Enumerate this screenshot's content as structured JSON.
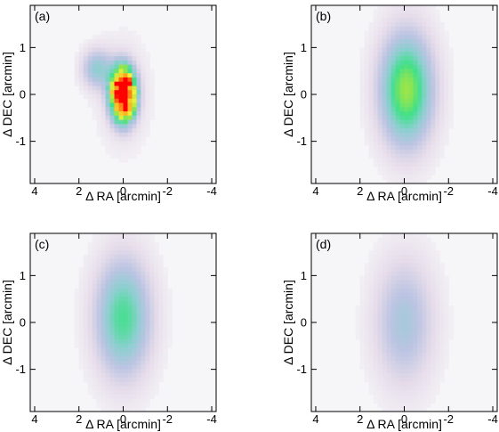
{
  "chart_data": [
    {
      "type": "heatmap",
      "panel_label": "(a)",
      "xlabel": "Δ RA [arcmin]",
      "ylabel": "Δ DEC [arcmin]",
      "xlim": [
        4.2,
        -4.2
      ],
      "ylim": [
        -1.9,
        1.9
      ],
      "x_ticks": [
        "4",
        "2",
        "0",
        "-2",
        "-4"
      ],
      "y_ticks": [
        "1",
        "0",
        "-1"
      ],
      "peak_center": [
        0.0,
        0.0
      ],
      "peak_intensity": 1.0,
      "structure": "clumpy"
    },
    {
      "type": "heatmap",
      "panel_label": "(b)",
      "xlabel": "Δ RA [arcmin]",
      "ylabel": "Δ DEC [arcmin]",
      "xlim": [
        4.2,
        -4.2
      ],
      "ylim": [
        -1.9,
        1.9
      ],
      "x_ticks": [
        "4",
        "2",
        "0",
        "-2",
        "-4"
      ],
      "y_ticks": [
        "1",
        "0",
        "-1"
      ],
      "peak_center": [
        -0.1,
        0.1
      ],
      "peak_intensity": 0.55,
      "structure": "smooth"
    },
    {
      "type": "heatmap",
      "panel_label": "(c)",
      "xlabel": "Δ RA [arcmin]",
      "ylabel": "Δ DEC [arcmin]",
      "xlim": [
        4.2,
        -4.2
      ],
      "ylim": [
        -1.9,
        1.9
      ],
      "x_ticks": [
        "4",
        "2",
        "0",
        "-2",
        "-4"
      ],
      "y_ticks": [
        "1",
        "0",
        "-1"
      ],
      "peak_center": [
        0.0,
        0.1
      ],
      "peak_intensity": 0.42,
      "structure": "smooth"
    },
    {
      "type": "heatmap",
      "panel_label": "(d)",
      "xlabel": "Δ RA [arcmin]",
      "ylabel": "Δ DEC [arcmin]",
      "xlim": [
        4.2,
        -4.2
      ],
      "ylim": [
        -1.9,
        1.9
      ],
      "x_ticks": [
        "4",
        "2",
        "0",
        "-2",
        "-4"
      ],
      "y_ticks": [
        "1",
        "0",
        "-1"
      ],
      "peak_center": [
        0.0,
        0.0
      ],
      "peak_intensity": 0.24,
      "structure": "smooth"
    }
  ],
  "colormap": [
    "#f6f5f8",
    "#e6dcea",
    "#bcc4e2",
    "#8ccfd0",
    "#40e08a",
    "#a8e640",
    "#f2f23a",
    "#ff9a1a",
    "#ff0000"
  ]
}
